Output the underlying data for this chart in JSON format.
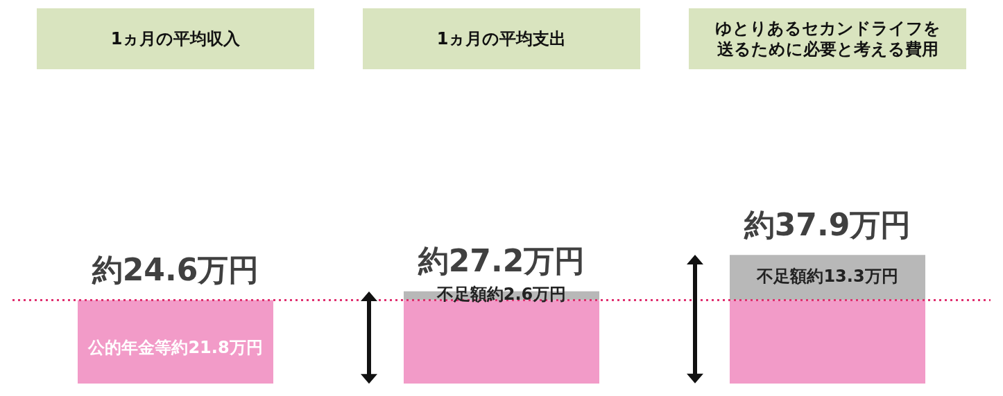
{
  "chart_data": {
    "type": "bar",
    "stacked": true,
    "categories": [
      "1ヵ月の平均収入",
      "1ヵ月の平均支出",
      "ゆとりあるセカンドライフを送るために必要と考える費用"
    ],
    "series": [
      {
        "color": "#f29bc8",
        "values": [
          24.6,
          24.6,
          24.6
        ]
      },
      {
        "color": "#b8b8b8",
        "values": [
          null,
          2.6,
          13.3
        ],
        "value_labels": [
          null,
          "不足額約2.6万円",
          "不足額約13.3万円"
        ]
      }
    ],
    "totals": [
      "約24.6万円",
      "約27.2万円",
      "約37.9万円"
    ],
    "annotations": [
      "公的年金等約21.8万円"
    ],
    "ref_lines": [
      {
        "axis": "y",
        "value": 24.6,
        "color": "#e0306f",
        "line_style": "dotted"
      }
    ],
    "legend": false,
    "tick_labels": "x"
  }
}
